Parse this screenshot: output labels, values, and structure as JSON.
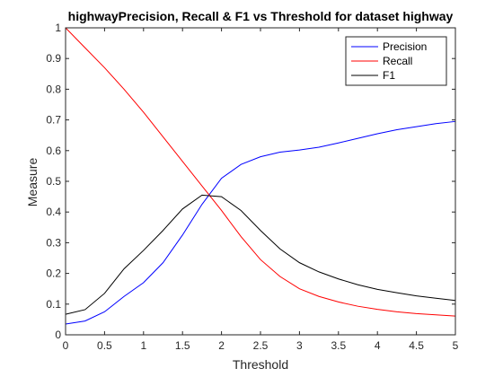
{
  "chart_data": {
    "type": "line",
    "title": "highwayPrecision, Recall & F1 vs Threshold for dataset highway",
    "xlabel": "Threshold",
    "ylabel": "Measure",
    "xlim": [
      0,
      5
    ],
    "ylim": [
      0,
      1
    ],
    "xticks": [
      "0",
      "0.5",
      "1",
      "1.5",
      "2",
      "2.5",
      "3",
      "3.5",
      "4",
      "4.5",
      "5"
    ],
    "yticks": [
      "0",
      "0.1",
      "0.2",
      "0.3",
      "0.4",
      "0.5",
      "0.6",
      "0.7",
      "0.8",
      "0.9",
      "1"
    ],
    "grid": false,
    "legend_position": "top-right",
    "x": [
      0,
      0.25,
      0.5,
      0.75,
      1,
      1.25,
      1.5,
      1.75,
      2,
      2.25,
      2.5,
      2.75,
      3,
      3.25,
      3.5,
      3.75,
      4,
      4.25,
      4.5,
      4.75,
      5
    ],
    "series": [
      {
        "name": "Precision",
        "color": "#0000ff",
        "values": [
          0.035,
          0.045,
          0.075,
          0.125,
          0.17,
          0.235,
          0.325,
          0.425,
          0.51,
          0.555,
          0.58,
          0.595,
          0.602,
          0.611,
          0.625,
          0.64,
          0.655,
          0.668,
          0.678,
          0.688,
          0.695
        ]
      },
      {
        "name": "Recall",
        "color": "#ff0000",
        "values": [
          1.0,
          0.935,
          0.87,
          0.8,
          0.725,
          0.645,
          0.565,
          0.485,
          0.405,
          0.32,
          0.245,
          0.19,
          0.15,
          0.125,
          0.107,
          0.093,
          0.083,
          0.075,
          0.069,
          0.065,
          0.061
        ]
      },
      {
        "name": "F1",
        "color": "#000000",
        "values": [
          0.067,
          0.082,
          0.135,
          0.215,
          0.275,
          0.34,
          0.41,
          0.455,
          0.45,
          0.405,
          0.34,
          0.28,
          0.235,
          0.205,
          0.182,
          0.163,
          0.148,
          0.137,
          0.127,
          0.119,
          0.112
        ]
      }
    ]
  }
}
